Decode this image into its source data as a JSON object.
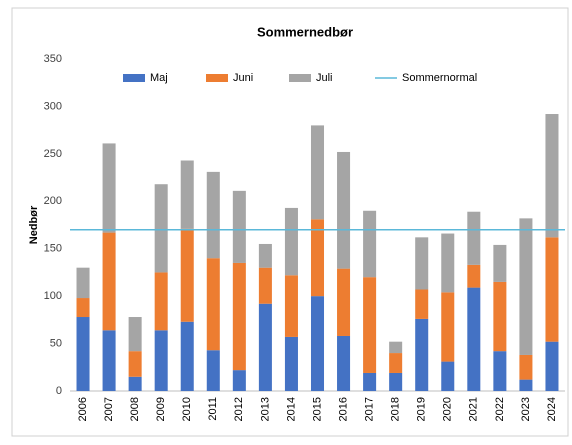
{
  "chart_data": {
    "type": "stacked_bar",
    "title": "Sommernedbør",
    "y_label": "Nedbør",
    "categories": [
      "2006",
      "2007",
      "2008",
      "2009",
      "2010",
      "2011",
      "2012",
      "2013",
      "2014",
      "2015",
      "2016",
      "2017",
      "2018",
      "2019",
      "2020",
      "2021",
      "2022",
      "2023",
      "2024"
    ],
    "series": [
      {
        "name": "Maj",
        "color": "#4472c4",
        "values": [
          78,
          64,
          15,
          64,
          73,
          43,
          22,
          92,
          57,
          100,
          58,
          19,
          19,
          76,
          31,
          109,
          42,
          12,
          52
        ]
      },
      {
        "name": "Juni",
        "color": "#ed7d31",
        "values": [
          20,
          103,
          27,
          61,
          98,
          97,
          113,
          38,
          65,
          81,
          71,
          101,
          21,
          31,
          73,
          24,
          73,
          26,
          110
        ]
      },
      {
        "name": "Juli",
        "color": "#a5a5a5",
        "values": [
          32,
          94,
          36,
          93,
          72,
          91,
          76,
          25,
          71,
          99,
          123,
          70,
          12,
          55,
          62,
          56,
          39,
          144,
          130
        ]
      }
    ],
    "reference_line": {
      "name": "Sommernormal",
      "value": 170,
      "color": "#5bb8d9"
    },
    "ylim": [
      0,
      350
    ],
    "yticks": [
      0,
      50,
      100,
      150,
      200,
      250,
      300,
      350
    ],
    "grid": false,
    "legend": "top"
  }
}
